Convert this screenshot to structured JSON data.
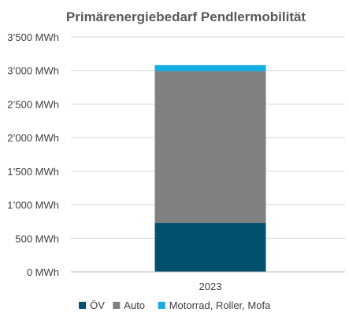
{
  "chart_data": {
    "type": "bar",
    "stacked": true,
    "title": "Primärenergiebedarf Pendlermobilität",
    "categories": [
      "2023"
    ],
    "series": [
      {
        "name": "ÖV",
        "values": [
          730
        ],
        "color": "#00506e"
      },
      {
        "name": "Auto",
        "values": [
          2260
        ],
        "color": "#808080"
      },
      {
        "name": "Motorrad, Roller, Mofa",
        "values": [
          90
        ],
        "color": "#14ade4"
      }
    ],
    "ylim": [
      0,
      3500
    ],
    "yticks": [
      {
        "value": 0,
        "label": "0 MWh"
      },
      {
        "value": 500,
        "label": "500 MWh"
      },
      {
        "value": 1000,
        "label": "1’000 MWh"
      },
      {
        "value": 1500,
        "label": "1’500 MWh"
      },
      {
        "value": 2000,
        "label": "2’000 MWh"
      },
      {
        "value": 2500,
        "label": "2’500 MWh"
      },
      {
        "value": 3000,
        "label": "3’000 MWh"
      },
      {
        "value": 3500,
        "label": "3’500 MWh"
      }
    ],
    "grid": true,
    "legend": "bottom"
  }
}
